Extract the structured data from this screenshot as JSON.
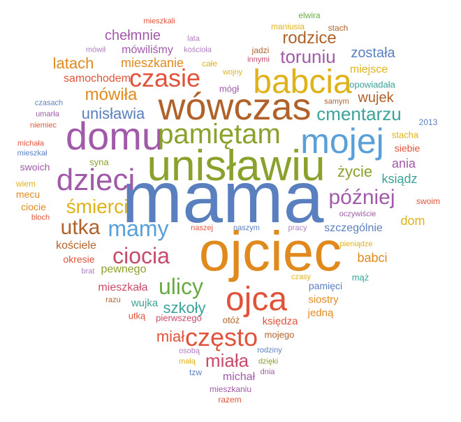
{
  "palette": {
    "blue": "#5a7fbf",
    "orange": "#e08a1e",
    "olive": "#8aa12c",
    "red": "#e0533a",
    "purple": "#a05aa8",
    "teal": "#3aa39a",
    "gold": "#e0b21a",
    "brown": "#b0622a",
    "lightpurple": "#b07ec0",
    "sky": "#5aa0d8",
    "green": "#6aaa44",
    "rose": "#c84a6a"
  },
  "words": [
    {
      "text": "mama",
      "color": "blue"
    },
    {
      "text": "ojciec",
      "color": "orange"
    },
    {
      "text": "unisławiu",
      "color": "olive"
    },
    {
      "text": "wówczas",
      "color": "brown"
    },
    {
      "text": "babcia",
      "color": "gold"
    },
    {
      "text": "domu",
      "color": "purple"
    },
    {
      "text": "mojej",
      "color": "sky"
    },
    {
      "text": "ojca",
      "color": "red"
    },
    {
      "text": "dzieci",
      "color": "purple"
    },
    {
      "text": "pamiętam",
      "color": "olive"
    },
    {
      "text": "czasie",
      "color": "red"
    },
    {
      "text": "często",
      "color": "red"
    },
    {
      "text": "mamy",
      "color": "sky"
    },
    {
      "text": "ulicy",
      "color": "green"
    },
    {
      "text": "ciocia",
      "color": "rose"
    },
    {
      "text": "później",
      "color": "purple"
    },
    {
      "text": "utka",
      "color": "brown"
    },
    {
      "text": "śmierci",
      "color": "gold"
    },
    {
      "text": "cmentarzu",
      "color": "teal"
    },
    {
      "text": "toruniu",
      "color": "purple"
    },
    {
      "text": "miała",
      "color": "rose"
    },
    {
      "text": "rodzice",
      "color": "brown"
    },
    {
      "text": "mówiła",
      "color": "orange"
    },
    {
      "text": "unisławia",
      "color": "blue"
    },
    {
      "text": "latach",
      "color": "orange"
    },
    {
      "text": "szkoły",
      "color": "teal"
    },
    {
      "text": "miał",
      "color": "red"
    },
    {
      "text": "została",
      "color": "blue"
    },
    {
      "text": "wujek",
      "color": "brown"
    },
    {
      "text": "życie",
      "color": "olive"
    },
    {
      "text": "chełmnie",
      "color": "purple"
    },
    {
      "text": "mieszkanie",
      "color": "orange"
    },
    {
      "text": "ania",
      "color": "purple"
    },
    {
      "text": "ksiądz",
      "color": "teal"
    },
    {
      "text": "dom",
      "color": "gold"
    },
    {
      "text": "babci",
      "color": "orange"
    },
    {
      "text": "michał",
      "color": "purple"
    },
    {
      "text": "szczególnie",
      "color": "blue"
    },
    {
      "text": "samochodem",
      "color": "red"
    },
    {
      "text": "mówiliśmy",
      "color": "purple"
    },
    {
      "text": "miejsce",
      "color": "gold"
    },
    {
      "text": "kościele",
      "color": "brown"
    },
    {
      "text": "pewnego",
      "color": "olive"
    },
    {
      "text": "mieszkała",
      "color": "rose"
    },
    {
      "text": "wujka",
      "color": "teal"
    },
    {
      "text": "siostry",
      "color": "orange"
    },
    {
      "text": "jedną",
      "color": "orange"
    },
    {
      "text": "księdza",
      "color": "red"
    },
    {
      "text": "siebie",
      "color": "red"
    },
    {
      "text": "pamięci",
      "color": "blue"
    },
    {
      "text": "opowiadała",
      "color": "teal"
    },
    {
      "text": "okresie",
      "color": "red"
    },
    {
      "text": "swoich",
      "color": "purple"
    },
    {
      "text": "syna",
      "color": "olive"
    },
    {
      "text": "ciocie",
      "color": "orange"
    },
    {
      "text": "mecu",
      "color": "orange"
    },
    {
      "text": "wiem",
      "color": "gold"
    },
    {
      "text": "stacha",
      "color": "gold"
    },
    {
      "text": "mojego",
      "color": "brown"
    },
    {
      "text": "mąż",
      "color": "teal"
    },
    {
      "text": "otóż",
      "color": "brown"
    },
    {
      "text": "pierwszego",
      "color": "rose"
    },
    {
      "text": "utką",
      "color": "red"
    },
    {
      "text": "mógł",
      "color": "purple"
    },
    {
      "text": "2013",
      "color": "blue"
    },
    {
      "text": "samym",
      "color": "brown"
    },
    {
      "text": "swoim",
      "color": "red"
    },
    {
      "text": "jadzi",
      "color": "brown"
    },
    {
      "text": "innymi",
      "color": "rose"
    },
    {
      "text": "wojny",
      "color": "gold"
    },
    {
      "text": "całe",
      "color": "gold"
    },
    {
      "text": "elwira",
      "color": "green"
    },
    {
      "text": "maniusia",
      "color": "gold"
    },
    {
      "text": "stach",
      "color": "brown"
    },
    {
      "text": "mieszkali",
      "color": "red"
    },
    {
      "text": "lata",
      "color": "lightpurple"
    },
    {
      "text": "mówił",
      "color": "lightpurple"
    },
    {
      "text": "kościoła",
      "color": "lightpurple"
    },
    {
      "text": "czasach",
      "color": "blue"
    },
    {
      "text": "umarła",
      "color": "purple"
    },
    {
      "text": "niemiec",
      "color": "red"
    },
    {
      "text": "michała",
      "color": "red"
    },
    {
      "text": "mieszkał",
      "color": "blue"
    },
    {
      "text": "bloch",
      "color": "red"
    },
    {
      "text": "oczywiście",
      "color": "purple"
    },
    {
      "text": "naszej",
      "color": "red"
    },
    {
      "text": "naszym",
      "color": "blue"
    },
    {
      "text": "pracy",
      "color": "lightpurple"
    },
    {
      "text": "pieniądze",
      "color": "gold"
    },
    {
      "text": "brat",
      "color": "lightpurple"
    },
    {
      "text": "razu",
      "color": "brown"
    },
    {
      "text": "czasy",
      "color": "gold"
    },
    {
      "text": "osobą",
      "color": "lightpurple"
    },
    {
      "text": "małą",
      "color": "gold"
    },
    {
      "text": "rodziny",
      "color": "blue"
    },
    {
      "text": "dzięki",
      "color": "olive"
    },
    {
      "text": "dnia",
      "color": "purple"
    },
    {
      "text": "tzw",
      "color": "blue"
    },
    {
      "text": "mieszkaniu",
      "color": "purple"
    },
    {
      "text": "razem",
      "color": "red"
    }
  ]
}
